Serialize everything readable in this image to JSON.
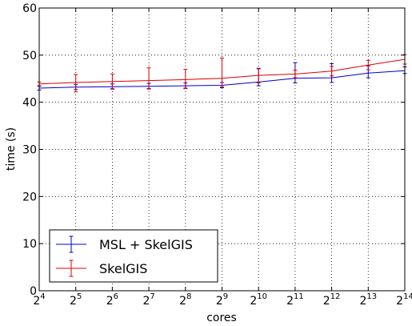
{
  "chart_data": {
    "type": "line",
    "xlabel": "cores",
    "ylabel": "time (s)",
    "x_scale": "log2",
    "x_ticks": [
      {
        "base": "2",
        "exp": "4"
      },
      {
        "base": "2",
        "exp": "5"
      },
      {
        "base": "2",
        "exp": "6"
      },
      {
        "base": "2",
        "exp": "7"
      },
      {
        "base": "2",
        "exp": "8"
      },
      {
        "base": "2",
        "exp": "9"
      },
      {
        "base": "2",
        "exp": "10"
      },
      {
        "base": "2",
        "exp": "11"
      },
      {
        "base": "2",
        "exp": "12"
      },
      {
        "base": "2",
        "exp": "13"
      },
      {
        "base": "2",
        "exp": "14"
      }
    ],
    "x": [
      16,
      32,
      64,
      128,
      256,
      512,
      1024,
      2048,
      4096,
      8192,
      16384
    ],
    "xlim": [
      16,
      16384
    ],
    "ylim": [
      0,
      60
    ],
    "y_ticks": [
      "0",
      "10",
      "20",
      "30",
      "40",
      "50",
      "60"
    ],
    "grid": true,
    "legend_position": "lower-left",
    "series": [
      {
        "name": "MSL + SkelGIS",
        "color": "#0000cc",
        "values": [
          43.0,
          43.2,
          43.3,
          43.4,
          43.5,
          43.6,
          44.3,
          45.1,
          45.2,
          46.2,
          46.7
        ],
        "err_low": [
          0.4,
          0.5,
          0.5,
          0.5,
          0.5,
          0.5,
          0.8,
          1.0,
          1.0,
          1.0,
          0.6
        ],
        "err_high": [
          0.4,
          0.6,
          0.6,
          0.6,
          0.6,
          0.6,
          2.9,
          3.3,
          3.0,
          1.5,
          0.8
        ]
      },
      {
        "name": "SkelGIS",
        "color": "#dd0000",
        "values": [
          43.9,
          44.2,
          44.4,
          44.6,
          44.8,
          45.1,
          45.7,
          46.0,
          46.6,
          47.9,
          49.1
        ],
        "err_low": [
          0.4,
          2.0,
          1.5,
          1.8,
          1.9,
          1.8,
          1.6,
          0.8,
          1.0,
          1.0,
          1.0
        ],
        "err_high": [
          0.4,
          1.7,
          1.6,
          2.7,
          2.2,
          4.3,
          1.4,
          0.8,
          1.0,
          1.0,
          1.0
        ]
      }
    ]
  }
}
